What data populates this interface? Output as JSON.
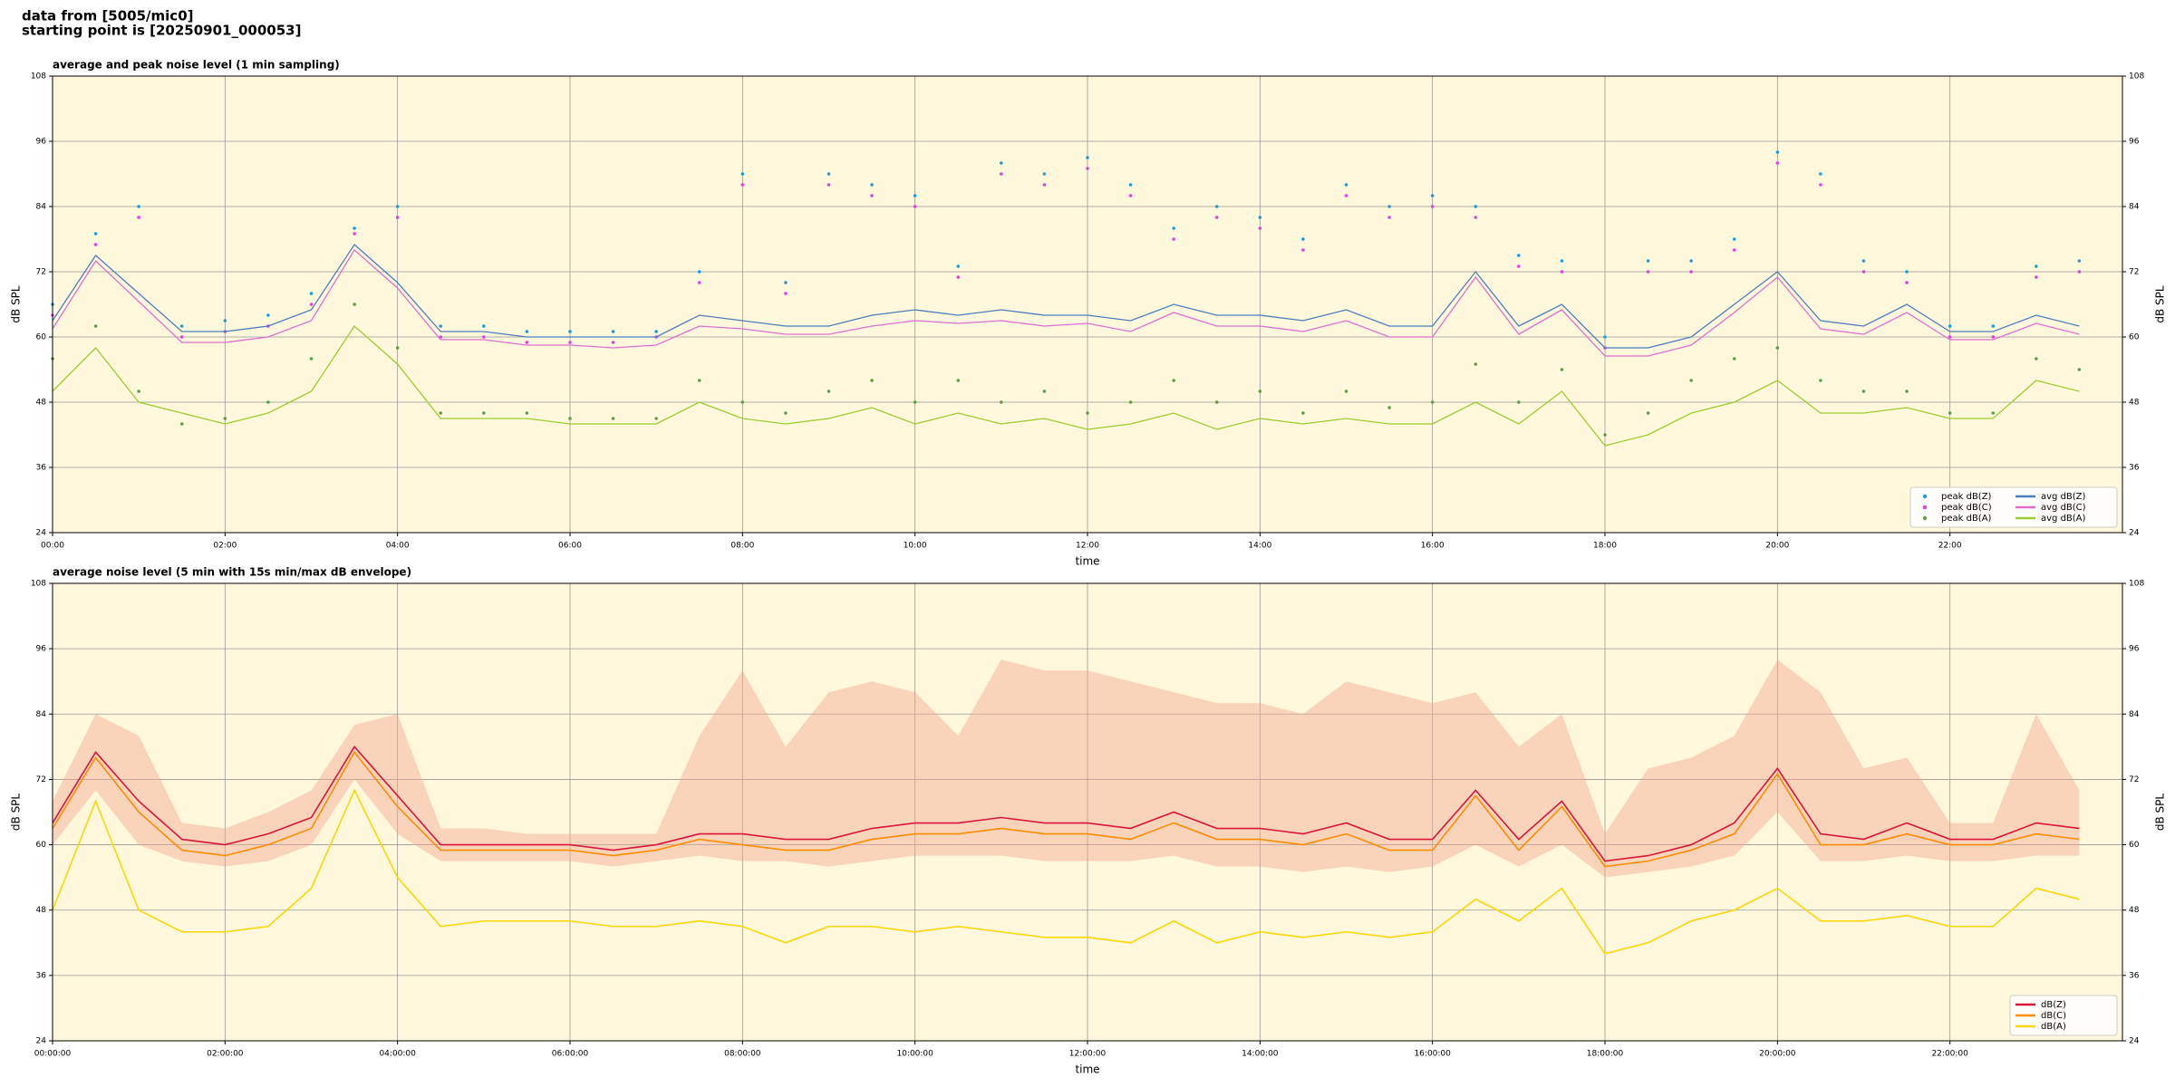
{
  "header": {
    "line1": "data from [5005/mic0]",
    "line2": "starting point is [20250901_000053]"
  },
  "chart_data": [
    {
      "type": "line",
      "title": "average and peak noise level (1 min sampling)",
      "xlabel": "time",
      "ylabel": "dB SPL",
      "xlim": [
        0,
        24
      ],
      "ylim": [
        24,
        108
      ],
      "yticks": [
        24,
        36,
        48,
        60,
        72,
        84,
        96,
        108
      ],
      "xticks": [
        {
          "value": 0,
          "label": "00:00"
        },
        {
          "value": 2,
          "label": "02:00"
        },
        {
          "value": 4,
          "label": "04:00"
        },
        {
          "value": 6,
          "label": "06:00"
        },
        {
          "value": 8,
          "label": "08:00"
        },
        {
          "value": 10,
          "label": "10:00"
        },
        {
          "value": 12,
          "label": "12:00"
        },
        {
          "value": 14,
          "label": "14:00"
        },
        {
          "value": 16,
          "label": "16:00"
        },
        {
          "value": 18,
          "label": "18:00"
        },
        {
          "value": 20,
          "label": "20:00"
        },
        {
          "value": 22,
          "label": "22:00"
        }
      ],
      "grid": true,
      "right_axis": true,
      "legend": "lower right",
      "legend_columns": 2,
      "background": "#fff8dc",
      "x": [
        0,
        0.5,
        1,
        1.5,
        2,
        2.5,
        3,
        3.5,
        4,
        4.5,
        5,
        5.5,
        6,
        6.5,
        7,
        7.5,
        8,
        8.5,
        9,
        9.5,
        10,
        10.5,
        11,
        11.5,
        12,
        12.5,
        13,
        13.5,
        14,
        14.5,
        15,
        15.5,
        16,
        16.5,
        17,
        17.5,
        18,
        18.5,
        19,
        19.5,
        20,
        20.5,
        21,
        21.5,
        22,
        22.5,
        23,
        23.5
      ],
      "series": [
        {
          "name": "peak dB(Z)",
          "color": "#1f9bd7",
          "mode": "markers",
          "values": [
            66,
            79,
            84,
            62,
            63,
            64,
            68,
            80,
            84,
            62,
            62,
            61,
            61,
            61,
            61,
            72,
            90,
            70,
            90,
            88,
            86,
            73,
            92,
            90,
            93,
            88,
            80,
            84,
            82,
            78,
            88,
            84,
            86,
            84,
            75,
            74,
            60,
            74,
            74,
            78,
            94,
            90,
            74,
            72,
            62,
            62,
            73,
            74
          ]
        },
        {
          "name": "peak dB(C)",
          "color": "#e040e0",
          "mode": "markers",
          "values": [
            64,
            77,
            82,
            60,
            61,
            62,
            66,
            79,
            82,
            60,
            60,
            59,
            59,
            59,
            60,
            70,
            88,
            68,
            88,
            86,
            84,
            71,
            90,
            88,
            91,
            86,
            78,
            82,
            80,
            76,
            86,
            82,
            84,
            82,
            73,
            72,
            58,
            72,
            72,
            76,
            92,
            88,
            72,
            70,
            60,
            60,
            71,
            72
          ]
        },
        {
          "name": "peak dB(A)",
          "color": "#5f9e4a",
          "mode": "markers",
          "values": [
            56,
            62,
            50,
            44,
            45,
            48,
            56,
            66,
            58,
            46,
            46,
            46,
            45,
            45,
            45,
            52,
            48,
            46,
            50,
            52,
            48,
            52,
            48,
            50,
            46,
            48,
            52,
            48,
            50,
            46,
            50,
            47,
            48,
            55,
            48,
            54,
            42,
            46,
            52,
            56,
            58,
            52,
            50,
            50,
            46,
            46,
            56,
            54
          ]
        },
        {
          "name": "avg dB(Z)",
          "color": "#4a7fbf",
          "mode": "line",
          "values": [
            63,
            75,
            68,
            61,
            61,
            62,
            65,
            77,
            70,
            61,
            61,
            60,
            60,
            60,
            60,
            64,
            63,
            62,
            62,
            64,
            65,
            64,
            65,
            64,
            64,
            63,
            66,
            64,
            64,
            63,
            65,
            62,
            62,
            72,
            62,
            66,
            58,
            58,
            60,
            66,
            72,
            63,
            62,
            66,
            61,
            61,
            64,
            62
          ]
        },
        {
          "name": "avg dB(C)",
          "color": "#e070d0",
          "mode": "line",
          "values": [
            61.5,
            74,
            66.5,
            59,
            59,
            60,
            63,
            76,
            69,
            59.5,
            59.5,
            58.5,
            58.5,
            58,
            58.5,
            62,
            61.5,
            60.5,
            60.5,
            62,
            63,
            62.5,
            63,
            62,
            62.5,
            61,
            64.5,
            62,
            62,
            61,
            63,
            60,
            60,
            71,
            60.5,
            65,
            56.5,
            56.5,
            58.5,
            64.5,
            71,
            61.5,
            60.5,
            64.5,
            59.5,
            59.5,
            62.5,
            60.5
          ]
        },
        {
          "name": "avg dB(A)",
          "color": "#9acd32",
          "mode": "line",
          "values": [
            50,
            58,
            48,
            46,
            44,
            46,
            50,
            62,
            55,
            45,
            45,
            45,
            44,
            44,
            44,
            48,
            45,
            44,
            45,
            47,
            44,
            46,
            44,
            45,
            43,
            44,
            46,
            43,
            45,
            44,
            45,
            44,
            44,
            48,
            44,
            50,
            40,
            42,
            46,
            48,
            52,
            46,
            46,
            47,
            45,
            45,
            52,
            50
          ]
        }
      ]
    },
    {
      "type": "line",
      "title": "average noise level (5 min with 15s min/max dB envelope)",
      "xlabel": "time",
      "ylabel": "dB SPL",
      "xlim": [
        0,
        24
      ],
      "ylim": [
        24,
        108
      ],
      "yticks": [
        24,
        36,
        48,
        60,
        72,
        84,
        96,
        108
      ],
      "xticks": [
        {
          "value": 0,
          "label": "00:00:00"
        },
        {
          "value": 2,
          "label": "02:00:00"
        },
        {
          "value": 4,
          "label": "04:00:00"
        },
        {
          "value": 6,
          "label": "06:00:00"
        },
        {
          "value": 8,
          "label": "08:00:00"
        },
        {
          "value": 10,
          "label": "10:00:00"
        },
        {
          "value": 12,
          "label": "12:00:00"
        },
        {
          "value": 14,
          "label": "14:00:00"
        },
        {
          "value": 16,
          "label": "16:00:00"
        },
        {
          "value": 18,
          "label": "18:00:00"
        },
        {
          "value": 20,
          "label": "20:00:00"
        },
        {
          "value": 22,
          "label": "22:00:00"
        }
      ],
      "grid": true,
      "right_axis": true,
      "legend": "lower right",
      "legend_columns": 1,
      "background": "#fff8dc",
      "x": [
        0,
        0.5,
        1,
        1.5,
        2,
        2.5,
        3,
        3.5,
        4,
        4.5,
        5,
        5.5,
        6,
        6.5,
        7,
        7.5,
        8,
        8.5,
        9,
        9.5,
        10,
        10.5,
        11,
        11.5,
        12,
        12.5,
        13,
        13.5,
        14,
        14.5,
        15,
        15.5,
        16,
        16.5,
        17,
        17.5,
        18,
        18.5,
        19,
        19.5,
        20,
        20.5,
        21,
        21.5,
        22,
        22.5,
        23,
        23.5
      ],
      "envelope": {
        "color": "#f2a890",
        "min": [
          60,
          70,
          60,
          57,
          56,
          57,
          60,
          72,
          62,
          57,
          57,
          57,
          57,
          56,
          57,
          58,
          57,
          57,
          56,
          57,
          58,
          58,
          58,
          57,
          57,
          57,
          58,
          56,
          56,
          55,
          56,
          55,
          56,
          60,
          56,
          60,
          54,
          55,
          56,
          58,
          66,
          57,
          57,
          58,
          57,
          57,
          58,
          58
        ],
        "max": [
          68,
          84,
          80,
          64,
          63,
          66,
          70,
          82,
          84,
          63,
          63,
          62,
          62,
          62,
          62,
          80,
          92,
          78,
          88,
          90,
          88,
          80,
          94,
          92,
          92,
          90,
          88,
          86,
          86,
          84,
          90,
          88,
          86,
          88,
          78,
          84,
          62,
          74,
          76,
          80,
          94,
          88,
          74,
          76,
          64,
          64,
          84,
          70
        ]
      },
      "series": [
        {
          "name": "dB(Z)",
          "color": "#dc143c",
          "mode": "line",
          "values": [
            64,
            77,
            68,
            61,
            60,
            62,
            65,
            78,
            69,
            60,
            60,
            60,
            60,
            59,
            60,
            62,
            62,
            61,
            61,
            63,
            64,
            64,
            65,
            64,
            64,
            63,
            66,
            63,
            63,
            62,
            64,
            61,
            61,
            70,
            61,
            68,
            57,
            58,
            60,
            64,
            74,
            62,
            61,
            64,
            61,
            61,
            64,
            63
          ]
        },
        {
          "name": "dB(C)",
          "color": "#ff8c00",
          "mode": "line",
          "values": [
            63,
            76,
            66,
            59,
            58,
            60,
            63,
            77,
            67,
            59,
            59,
            59,
            59,
            58,
            59,
            61,
            60,
            59,
            59,
            61,
            62,
            62,
            63,
            62,
            62,
            61,
            64,
            61,
            61,
            60,
            62,
            59,
            59,
            69,
            59,
            67,
            56,
            57,
            59,
            62,
            73,
            60,
            60,
            62,
            60,
            60,
            62,
            61
          ]
        },
        {
          "name": "dB(A)",
          "color": "#ffd700",
          "mode": "line",
          "values": [
            48,
            68,
            48,
            44,
            44,
            45,
            52,
            70,
            54,
            45,
            46,
            46,
            46,
            45,
            45,
            46,
            45,
            42,
            45,
            45,
            44,
            45,
            44,
            43,
            43,
            42,
            46,
            42,
            44,
            43,
            44,
            43,
            44,
            50,
            46,
            52,
            40,
            42,
            46,
            48,
            52,
            46,
            46,
            47,
            45,
            45,
            52,
            50
          ]
        }
      ]
    }
  ]
}
